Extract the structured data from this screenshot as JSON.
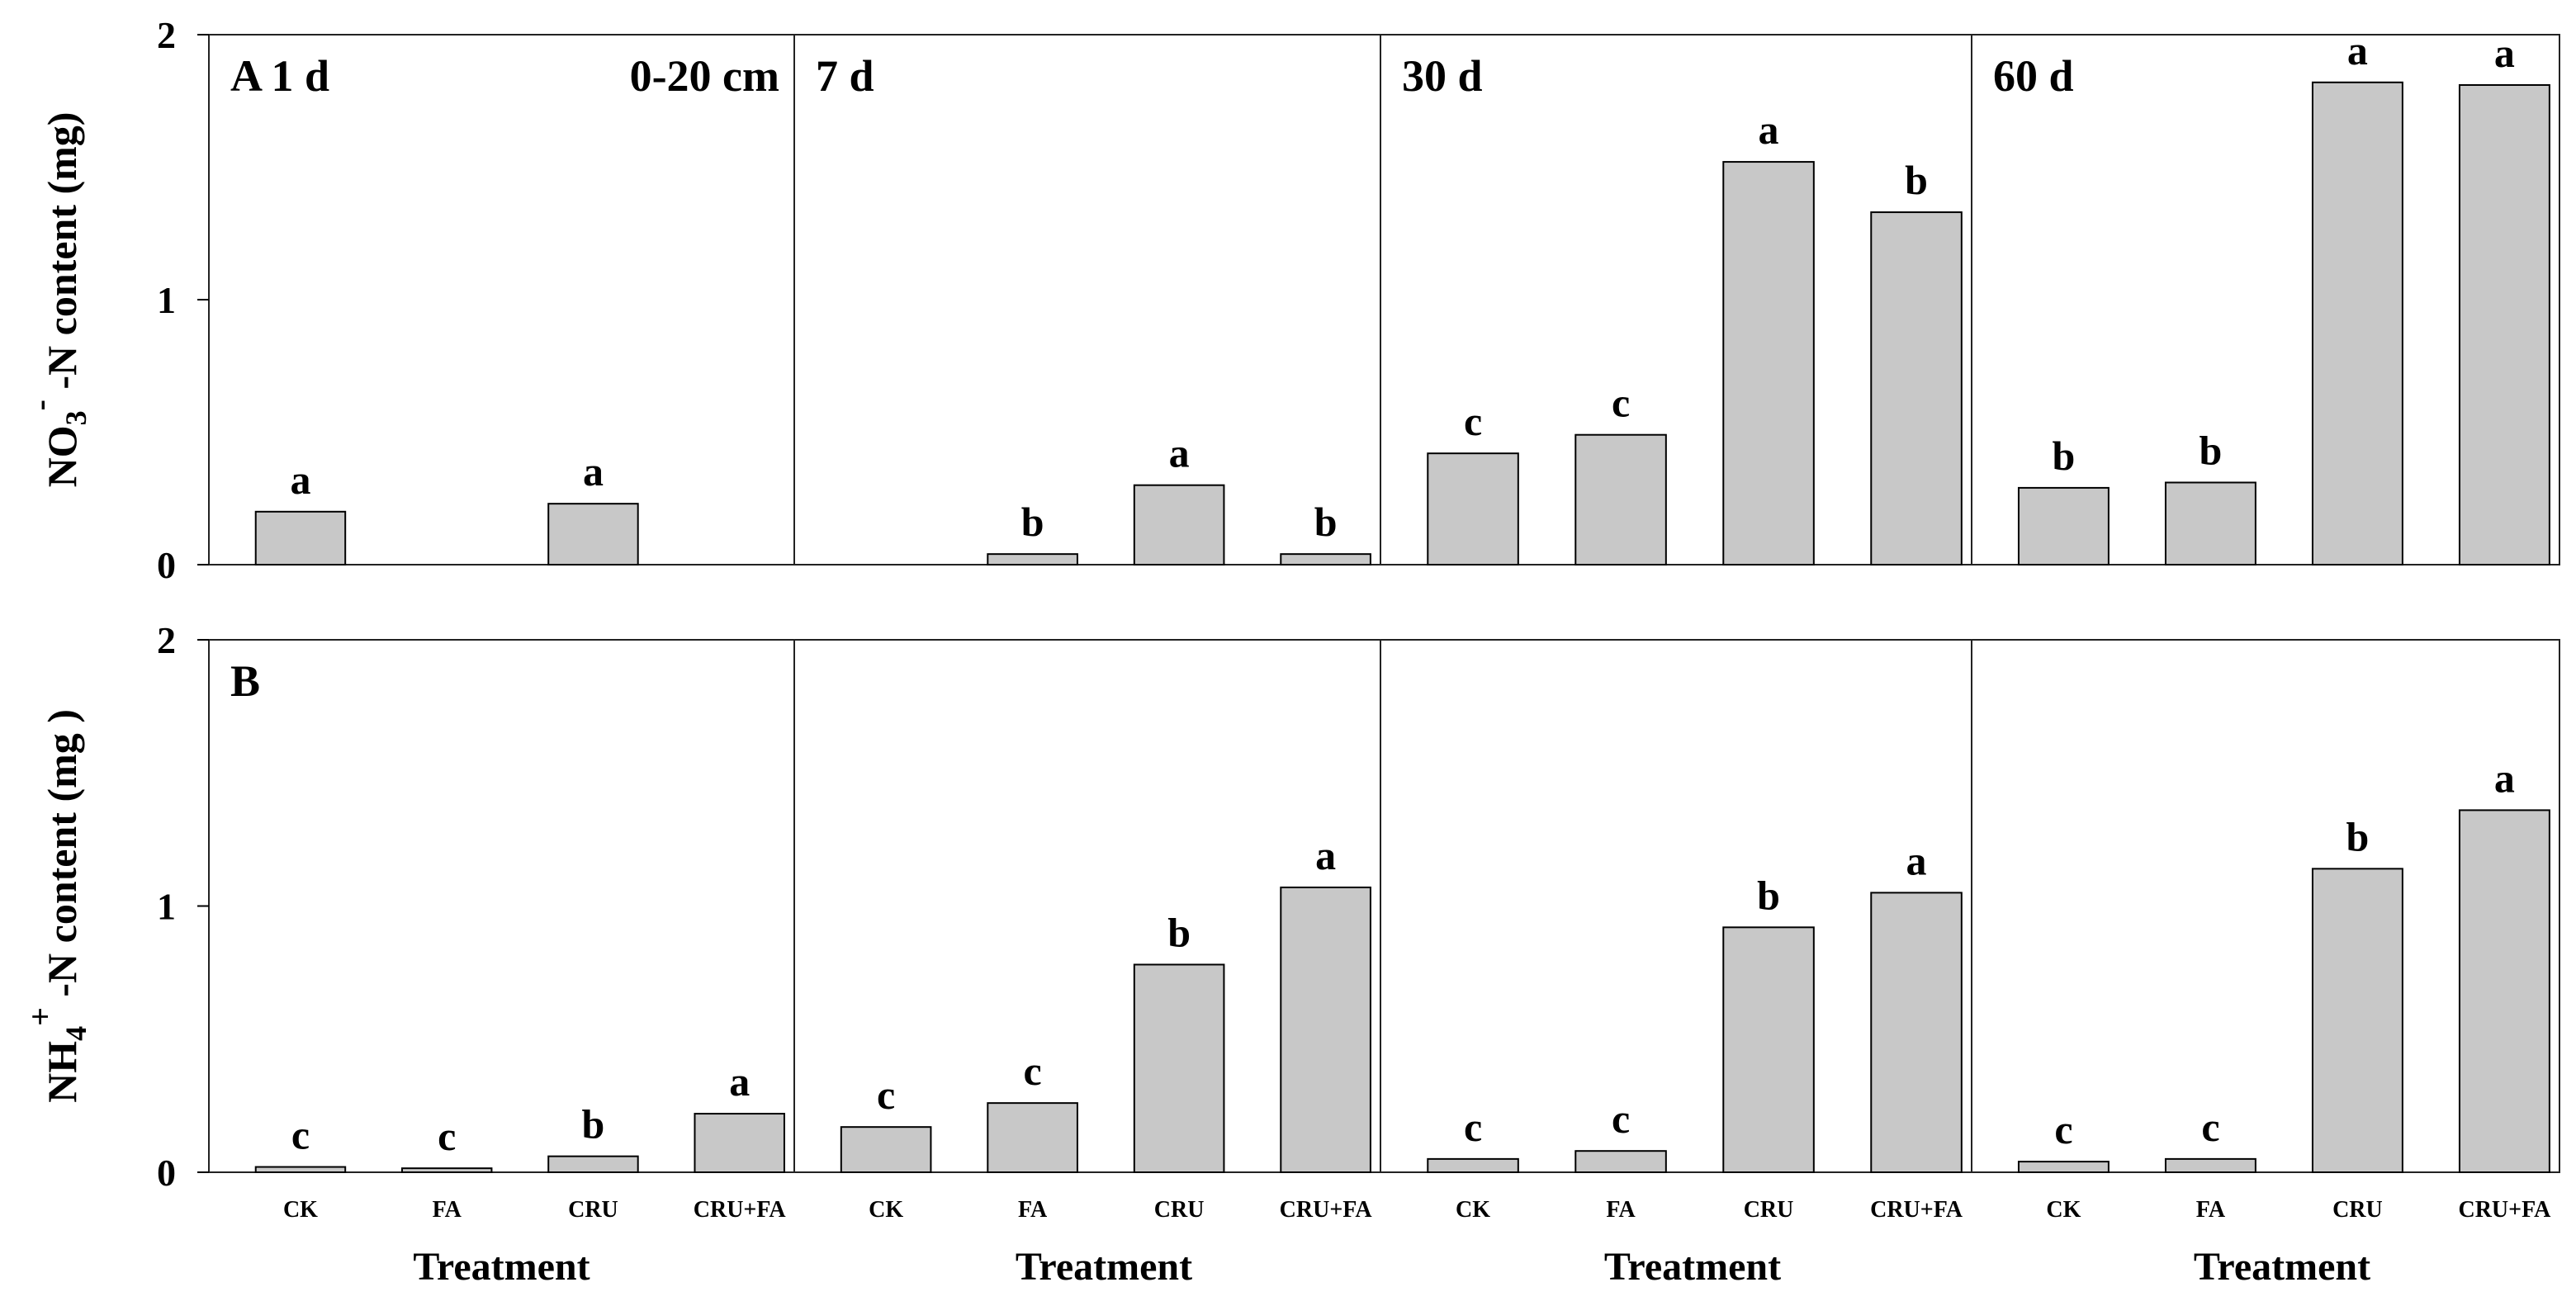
{
  "chart_data": [
    {
      "type": "bar",
      "panel": "A",
      "ylabel": "NO3- -N content (mg)",
      "ylabel_parts": {
        "base": "NO",
        "sub": "3",
        "sup": "-",
        "rest": " -N content (mg)"
      },
      "ylim": [
        0,
        2
      ],
      "yticks": [
        0,
        1,
        2
      ],
      "categories": [
        "CK",
        "FA",
        "CRU",
        "CRU+FA"
      ],
      "depth_label": "0-20 cm",
      "subplots": [
        {
          "title": "A 1 d",
          "values": [
            0.2,
            0.0,
            0.23,
            0.0
          ],
          "letters": [
            "a",
            "",
            "a",
            ""
          ]
        },
        {
          "title": "7 d",
          "values": [
            0.0,
            0.04,
            0.3,
            0.04
          ],
          "letters": [
            "",
            "b",
            "a",
            "b"
          ]
        },
        {
          "title": "30 d",
          "values": [
            0.42,
            0.49,
            1.52,
            1.33
          ],
          "letters": [
            "c",
            "c",
            "a",
            "b"
          ]
        },
        {
          "title": "60 d",
          "values": [
            0.29,
            0.31,
            1.82,
            1.81
          ],
          "letters": [
            "b",
            "b",
            "a",
            "a"
          ]
        }
      ]
    },
    {
      "type": "bar",
      "panel": "B",
      "ylabel": "NH4+ -N content (mg )",
      "ylabel_parts": {
        "base": "NH",
        "sub": "4",
        "sup": "+",
        "rest": " -N content (mg )"
      },
      "ylim": [
        0,
        2
      ],
      "yticks": [
        0,
        1,
        2
      ],
      "categories": [
        "CK",
        "FA",
        "CRU",
        "CRU+FA"
      ],
      "xlabel": "Treatment",
      "subplots": [
        {
          "title": "B",
          "values": [
            0.02,
            0.015,
            0.06,
            0.22
          ],
          "letters": [
            "c",
            "c",
            "b",
            "a"
          ]
        },
        {
          "title": "",
          "values": [
            0.17,
            0.26,
            0.78,
            1.07
          ],
          "letters": [
            "c",
            "c",
            "b",
            "a"
          ]
        },
        {
          "title": "",
          "values": [
            0.05,
            0.08,
            0.92,
            1.05
          ],
          "letters": [
            "c",
            "c",
            "b",
            "a"
          ]
        },
        {
          "title": "",
          "values": [
            0.04,
            0.05,
            1.14,
            1.36
          ],
          "letters": [
            "c",
            "c",
            "b",
            "a"
          ]
        }
      ]
    }
  ],
  "colors": {
    "bar_fill": "#c8c8c8",
    "bar_stroke": "#000000"
  }
}
